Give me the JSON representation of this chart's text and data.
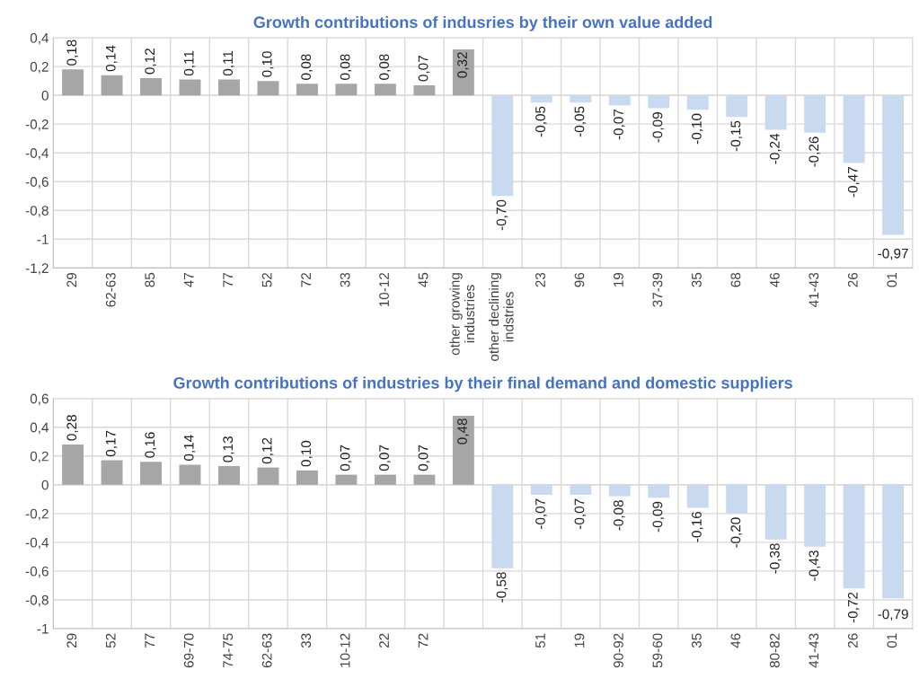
{
  "chart_data": [
    {
      "type": "bar",
      "title": "Growth contributions of indusries by their own value added",
      "categories": [
        "29",
        "62-63",
        "85",
        "47",
        "77",
        "52",
        "72",
        "33",
        "10-12",
        "45",
        "other growing industries",
        "other declining indstries",
        "23",
        "96",
        "19",
        "37-39",
        "35",
        "68",
        "46",
        "41-43",
        "26",
        "01"
      ],
      "values": [
        0.18,
        0.14,
        0.12,
        0.11,
        0.11,
        0.1,
        0.08,
        0.08,
        0.08,
        0.07,
        0.32,
        -0.7,
        -0.05,
        -0.05,
        -0.07,
        -0.09,
        -0.1,
        -0.15,
        -0.24,
        -0.26,
        -0.47,
        -0.97
      ],
      "value_labels": [
        "0,18",
        "0,14",
        "0,12",
        "0,11",
        "0,11",
        "0,10",
        "0,08",
        "0,08",
        "0,08",
        "0,07",
        "0,32",
        "-0,70",
        "-0,05",
        "-0,05",
        "-0,07",
        "-0,09",
        "-0,10",
        "-0,15",
        "-0,24",
        "-0,26",
        "-0,47",
        "-0,97"
      ],
      "colors": [
        "#a6a6a6",
        "#a6a6a6",
        "#a6a6a6",
        "#a6a6a6",
        "#a6a6a6",
        "#a6a6a6",
        "#a6a6a6",
        "#a6a6a6",
        "#a6a6a6",
        "#a6a6a6",
        "#a6a6a6",
        "#c9d9f0",
        "#c9d9f0",
        "#c9d9f0",
        "#c9d9f0",
        "#c9d9f0",
        "#c9d9f0",
        "#c9d9f0",
        "#c9d9f0",
        "#c9d9f0",
        "#c9d9f0",
        "#c9d9f0"
      ],
      "ylim": [
        -1.2,
        0.4
      ],
      "yticks": [
        {
          "value": -1.2,
          "label": "-1,2"
        },
        {
          "value": -1,
          "label": "-1"
        },
        {
          "value": -0.8,
          "label": "-0,8"
        },
        {
          "value": -0.6,
          "label": "-0,6"
        },
        {
          "value": -0.4,
          "label": "-0,4"
        },
        {
          "value": -0.2,
          "label": "-0,2"
        },
        0,
        {
          "value": 0.2,
          "label": "0,2"
        },
        {
          "value": 0.4,
          "label": "0,4"
        }
      ],
      "grid": true
    },
    {
      "type": "bar",
      "title": "Growth contributions of industries by their final demand and domestic suppliers",
      "categories": [
        "29",
        "52",
        "77",
        "69-70",
        "74-75",
        "62-63",
        "33",
        "10-12",
        "22",
        "72",
        null,
        null,
        "51",
        "19",
        "90-92",
        "59-60",
        "35",
        "46",
        "80-82",
        "41-43",
        "26",
        "01"
      ],
      "values": [
        0.28,
        0.17,
        0.16,
        0.14,
        0.13,
        0.12,
        0.1,
        0.07,
        0.07,
        0.07,
        0.48,
        -0.58,
        -0.07,
        -0.07,
        -0.08,
        -0.09,
        -0.16,
        -0.2,
        -0.38,
        -0.43,
        -0.72,
        -0.79
      ],
      "value_labels": [
        "0,28",
        "0,17",
        "0,16",
        "0,14",
        "0,13",
        "0,12",
        "0,10",
        "0,07",
        "0,07",
        "0,07",
        "0,48",
        "-0,58",
        "-0,07",
        "-0,07",
        "-0,08",
        "-0,09",
        "-0,16",
        "-0,20",
        "-0,38",
        "-0,43",
        "-0,72",
        "-0,79"
      ],
      "colors": [
        "#a6a6a6",
        "#a6a6a6",
        "#a6a6a6",
        "#a6a6a6",
        "#a6a6a6",
        "#a6a6a6",
        "#a6a6a6",
        "#a6a6a6",
        "#a6a6a6",
        "#a6a6a6",
        "#a6a6a6",
        "#c9d9f0",
        "#c9d9f0",
        "#c9d9f0",
        "#c9d9f0",
        "#c9d9f0",
        "#c9d9f0",
        "#c9d9f0",
        "#c9d9f0",
        "#c9d9f0",
        "#c9d9f0",
        "#c9d9f0"
      ],
      "ylim": [
        -1,
        0.6
      ],
      "yticks": [
        {
          "value": -1,
          "label": "-1"
        },
        {
          "value": -0.8,
          "label": "-0,8"
        },
        {
          "value": -0.6,
          "label": "-0,6"
        },
        {
          "value": -0.4,
          "label": "-0,4"
        },
        {
          "value": -0.2,
          "label": "-0,2"
        },
        0,
        {
          "value": 0.2,
          "label": "0,2"
        },
        {
          "value": 0.4,
          "label": "0,4"
        },
        {
          "value": 0.6,
          "label": "0,6"
        }
      ],
      "grid": true
    }
  ]
}
